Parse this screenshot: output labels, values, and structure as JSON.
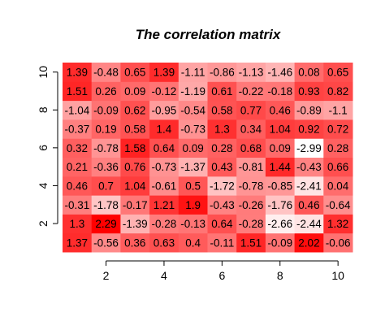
{
  "chart_data": {
    "type": "heatmap",
    "title": "The correlation matrix",
    "xlabel": "",
    "ylabel": "",
    "x": [
      1,
      2,
      3,
      4,
      5,
      6,
      7,
      8,
      9,
      10
    ],
    "y": [
      1,
      2,
      3,
      4,
      5,
      6,
      7,
      8,
      9,
      10
    ],
    "xlim": [
      0.5,
      10.5
    ],
    "ylim": [
      0.5,
      10.5
    ],
    "x_ticks": [
      2,
      4,
      6,
      8,
      10
    ],
    "y_ticks": [
      2,
      4,
      6,
      8,
      10
    ],
    "grid": false,
    "colors": {
      "low": "#ffffff",
      "high": "#ff0000"
    },
    "values_by_row_from_bottom": [
      [
        1.37,
        -0.56,
        0.36,
        0.63,
        0.4,
        -0.11,
        1.51,
        -0.09,
        2.02,
        -0.06
      ],
      [
        1.3,
        2.29,
        -1.39,
        -0.28,
        -0.13,
        0.64,
        -0.28,
        -2.66,
        -2.44,
        1.32
      ],
      [
        -0.31,
        -1.78,
        -0.17,
        1.21,
        1.9,
        -0.43,
        -0.26,
        -1.76,
        0.46,
        -0.64
      ],
      [
        0.46,
        0.7,
        1.04,
        -0.61,
        0.5,
        -1.72,
        -0.78,
        -0.85,
        -2.41,
        0.04
      ],
      [
        0.21,
        -0.36,
        0.76,
        -0.73,
        -1.37,
        0.43,
        -0.81,
        1.44,
        -0.43,
        0.66
      ],
      [
        0.32,
        -0.78,
        1.58,
        0.64,
        0.09,
        0.28,
        0.68,
        0.09,
        -2.99,
        0.28
      ],
      [
        -0.37,
        0.19,
        0.58,
        1.4,
        -0.73,
        1.3,
        0.34,
        1.04,
        0.92,
        0.72
      ],
      [
        -1.04,
        -0.09,
        0.62,
        -0.95,
        -0.54,
        0.58,
        0.77,
        0.46,
        -0.89,
        -1.1
      ],
      [
        1.51,
        0.26,
        0.09,
        -0.12,
        -1.19,
        0.61,
        -0.22,
        -0.18,
        0.93,
        0.82
      ],
      [
        1.39,
        -0.48,
        0.65,
        1.39,
        -1.11,
        -0.86,
        -1.13,
        -1.46,
        0.08,
        0.65
      ]
    ]
  }
}
